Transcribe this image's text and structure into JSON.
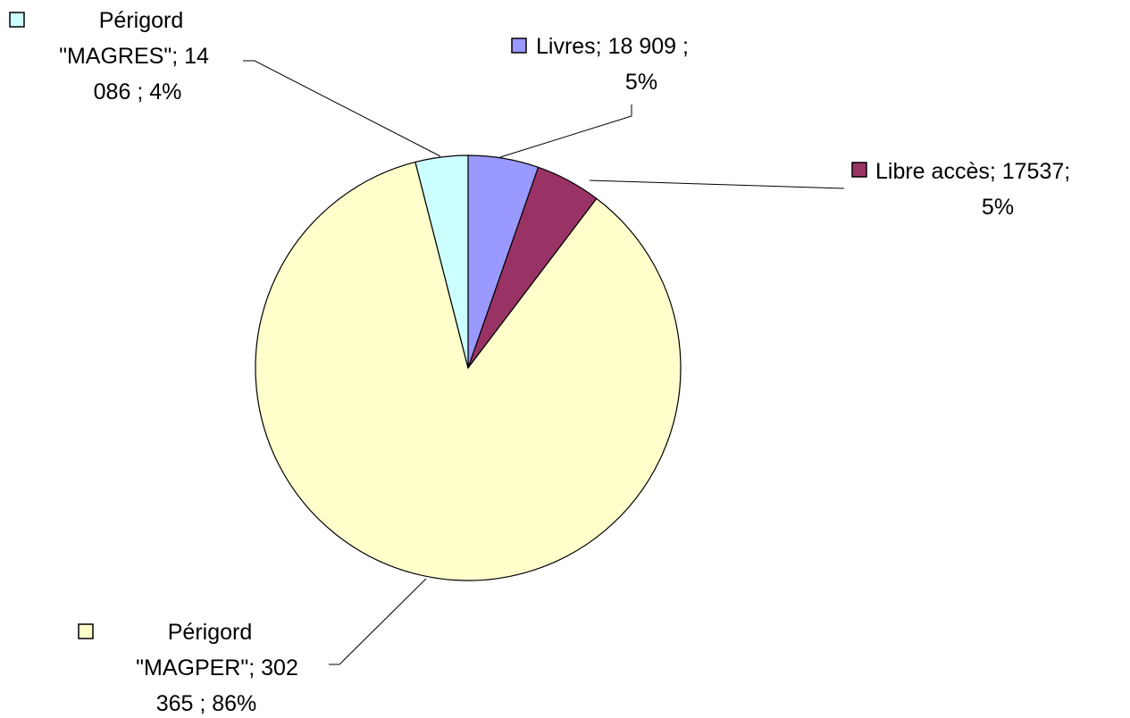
{
  "chart_data": {
    "type": "pie",
    "title": "",
    "legend": "none",
    "slices": [
      {
        "label_lines": [
          "Livres;  18 909    ;",
          "5%"
        ],
        "value": 18909,
        "percent": "5%",
        "color": "#9999ff"
      },
      {
        "label_lines": [
          "Libre accès; 17537;",
          "5%"
        ],
        "value": 17537,
        "percent": "5%",
        "color": "#993366"
      },
      {
        "label_lines": [
          "Périgord",
          "\"MAGPER\";  302",
          "365    ; 86%"
        ],
        "value": 302365,
        "percent": "86%",
        "color": "#ffffcc"
      },
      {
        "label_lines": [
          "Périgord",
          "\"MAGRES\";  14",
          "086    ; 4%"
        ],
        "value": 14086,
        "percent": "4%",
        "color": "#ccffff"
      }
    ]
  }
}
